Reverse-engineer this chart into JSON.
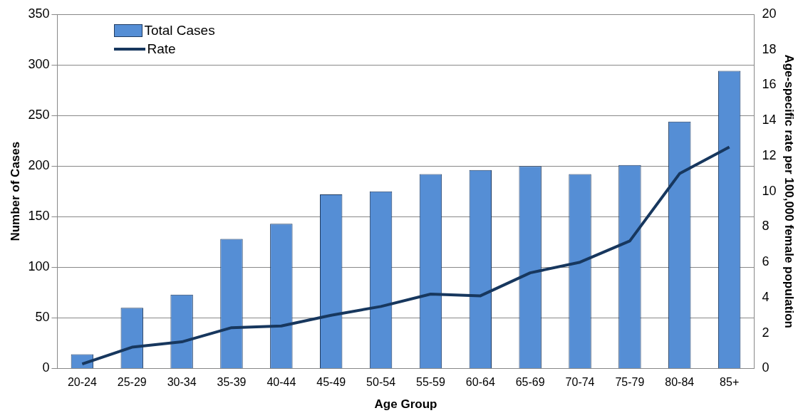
{
  "chart_data": {
    "type": "bar",
    "xlabel": "Age Group",
    "ylabel": "Number of Cases",
    "y2label": "Age-specific rate per 100,000 female population",
    "categories": [
      "20-24",
      "25-29",
      "30-34",
      "35-39",
      "40-44",
      "45-49",
      "50-54",
      "55-59",
      "60-64",
      "65-69",
      "70-74",
      "75-79",
      "80-84",
      "85+"
    ],
    "series": [
      {
        "name": "Total Cases",
        "color": "#558ed5",
        "values": [
          14,
          60,
          73,
          128,
          143,
          172,
          175,
          192,
          196,
          200,
          192,
          201,
          244,
          294
        ]
      },
      {
        "name": "Rate",
        "type": "line",
        "axis": "y2",
        "color": "#17375e",
        "values": [
          0.25,
          1.2,
          1.5,
          2.3,
          2.4,
          3.0,
          3.5,
          4.2,
          4.1,
          5.4,
          6.0,
          7.2,
          11.0,
          12.5
        ]
      }
    ],
    "ylim": [
      0,
      350
    ],
    "yticks": [
      0,
      50,
      100,
      150,
      200,
      250,
      300,
      350
    ],
    "y2lim": [
      0,
      20
    ],
    "y2ticks": [
      0,
      2,
      4,
      6,
      8,
      10,
      12,
      14,
      16,
      18,
      20
    ],
    "grid": "y",
    "legend": "top left",
    "marker": "none"
  }
}
